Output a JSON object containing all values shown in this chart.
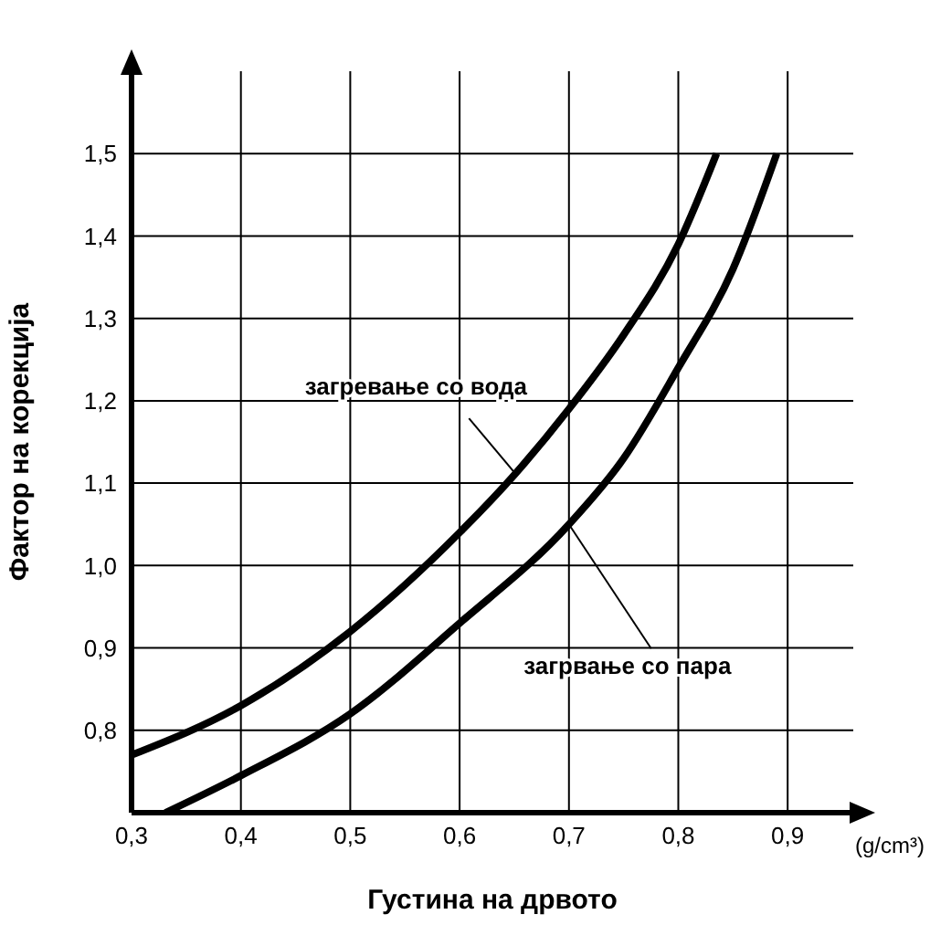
{
  "chart_data": {
    "type": "line",
    "xlabel": "Густина на дрвото",
    "ylabel": "Фактор на корекција",
    "x": [
      0.3,
      0.4,
      0.5,
      0.6,
      0.65,
      0.7,
      0.75,
      0.8,
      0.835
    ],
    "series": [
      {
        "color": "#000000",
        "values": [
          0.77,
          0.83,
          0.92,
          1.04,
          1.11,
          1.19,
          1.28,
          1.39,
          1.5
        ]
      },
      {
        "color": "#000000",
        "x": [
          0.331,
          0.4,
          0.5,
          0.6,
          0.7,
          0.75,
          0.8,
          0.85,
          0.89
        ],
        "values": [
          0.7,
          0.745,
          0.82,
          0.93,
          1.05,
          1.13,
          1.24,
          1.36,
          1.5
        ]
      }
    ],
    "xlim": [
      0.3,
      0.96
    ],
    "ylim": [
      0.7,
      1.6
    ],
    "xticks": [
      {
        "value": 0.3,
        "label": "0,3"
      },
      {
        "value": 0.4,
        "label": "0,4"
      },
      {
        "value": 0.5,
        "label": "0,5"
      },
      {
        "value": 0.6,
        "label": "0,6"
      },
      {
        "value": 0.7,
        "label": "0,7"
      },
      {
        "value": 0.8,
        "label": "0,8"
      },
      {
        "value": 0.9,
        "label": "0,9"
      }
    ],
    "yticks": [
      {
        "value": 0.8,
        "label": "0,8"
      },
      {
        "value": 0.9,
        "label": "0,9"
      },
      {
        "value": 1.0,
        "label": "1,0"
      },
      {
        "value": 1.1,
        "label": "1,1"
      },
      {
        "value": 1.2,
        "label": "1,2"
      },
      {
        "value": 1.3,
        "label": "1,3"
      },
      {
        "value": 1.4,
        "label": "1,4"
      },
      {
        "value": 1.5,
        "label": "1,5"
      }
    ],
    "grid": true,
    "marker": "none",
    "line_style": "solid",
    "annotations": [
      {
        "text": "загревање со вода",
        "x": 0.652,
        "y": 1.11
      },
      {
        "text": "загрвање со пара",
        "x": 0.7,
        "y": 1.05
      },
      "(g/cm³)"
    ]
  }
}
